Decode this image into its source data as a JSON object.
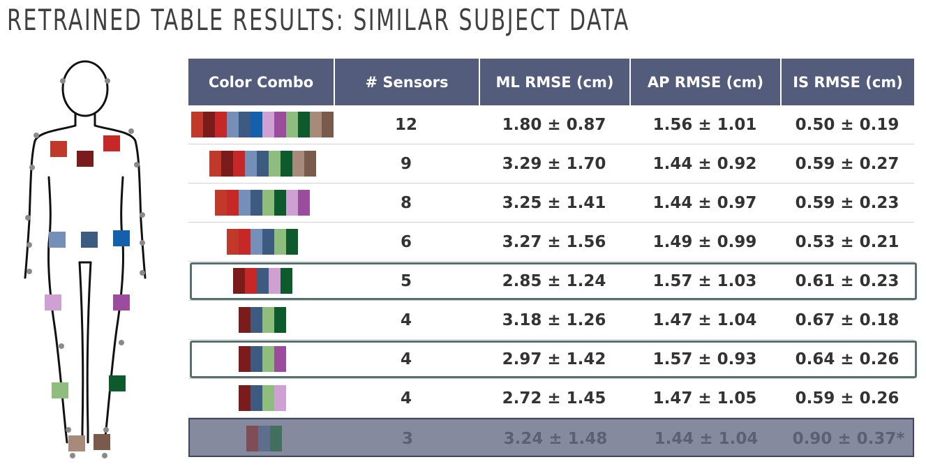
{
  "title": "RETRAINED TABLE RESULTS: SIMILAR SUBJECT DATA",
  "colors": {
    "header_bg": "#545c7c",
    "highlight_border": "#567070",
    "dimmed_row_bg": "#868a9e"
  },
  "figure": {
    "sensors": [
      {
        "name": "chest-right",
        "color": "#c0392b"
      },
      {
        "name": "chest-left",
        "color": "#c62828"
      },
      {
        "name": "sternum",
        "color": "#7b1c1c"
      },
      {
        "name": "hip-right",
        "color": "#7490b8"
      },
      {
        "name": "hip-center",
        "color": "#3d5a80"
      },
      {
        "name": "hip-left",
        "color": "#1560ad"
      },
      {
        "name": "thigh-right",
        "color": "#cfa0d4"
      },
      {
        "name": "thigh-left",
        "color": "#9c4c9c"
      },
      {
        "name": "shank-right",
        "color": "#8fbd7e"
      },
      {
        "name": "shank-left",
        "color": "#0d5a2c"
      },
      {
        "name": "foot-right",
        "color": "#a88a7a"
      },
      {
        "name": "foot-left",
        "color": "#7a5a4a"
      }
    ]
  },
  "table": {
    "headers": [
      "Color Combo",
      "# Sensors",
      "ML RMSE (cm)",
      "AP RMSE (cm)",
      "IS RMSE (cm)"
    ],
    "rows": [
      {
        "combo": [
          "#c0392b",
          "#7b1c1c",
          "#c62828",
          "#7490b8",
          "#3d5a80",
          "#1560ad",
          "#cfa0d4",
          "#9c4c9c",
          "#8fbd7e",
          "#0d5a2c",
          "#a88a7a",
          "#7a5a4a"
        ],
        "sensors": "12",
        "ml": "1.80 ± 0.87",
        "ap": "1.56 ± 1.01",
        "is": "0.50 ± 0.19",
        "highlight": false,
        "dim": false
      },
      {
        "combo": [
          "#c0392b",
          "#7b1c1c",
          "#c62828",
          "#7490b8",
          "#3d5a80",
          "#8fbd7e",
          "#0d5a2c",
          "#a88a7a",
          "#7a5a4a"
        ],
        "sensors": "9",
        "ml": "3.29 ± 1.70",
        "ap": "1.44 ± 0.92",
        "is": "0.59 ± 0.27",
        "highlight": false,
        "dim": false
      },
      {
        "combo": [
          "#c0392b",
          "#c62828",
          "#7490b8",
          "#3d5a80",
          "#8fbd7e",
          "#0d5a2c",
          "#cfa0d4",
          "#9c4c9c"
        ],
        "sensors": "8",
        "ml": "3.25 ± 1.41",
        "ap": "1.44 ± 0.97",
        "is": "0.59 ± 0.23",
        "highlight": false,
        "dim": false
      },
      {
        "combo": [
          "#c0392b",
          "#c62828",
          "#7490b8",
          "#3d5a80",
          "#8fbd7e",
          "#0d5a2c"
        ],
        "sensors": "6",
        "ml": "3.27 ± 1.56",
        "ap": "1.49 ± 0.99",
        "is": "0.53 ± 0.21",
        "highlight": false,
        "dim": false
      },
      {
        "combo": [
          "#7b1c1c",
          "#c62828",
          "#3d5a80",
          "#cfa0d4",
          "#0d5a2c"
        ],
        "sensors": "5",
        "ml": "2.85 ± 1.24",
        "ap": "1.57 ± 1.03",
        "is": "0.61 ± 0.23",
        "highlight": true,
        "dim": false
      },
      {
        "combo": [
          "#7b1c1c",
          "#3d5a80",
          "#8fbd7e",
          "#0d5a2c"
        ],
        "sensors": "4",
        "ml": "3.18 ± 1.26",
        "ap": "1.47 ± 1.04",
        "is": "0.67 ± 0.18",
        "highlight": false,
        "dim": false
      },
      {
        "combo": [
          "#7b1c1c",
          "#3d5a80",
          "#8fbd7e",
          "#9c4c9c"
        ],
        "sensors": "4",
        "ml": "2.97 ± 1.42",
        "ap": "1.57 ± 0.93",
        "is": "0.64 ± 0.26",
        "highlight": true,
        "dim": false
      },
      {
        "combo": [
          "#7b1c1c",
          "#3d5a80",
          "#8fbd7e",
          "#cfa0d4"
        ],
        "sensors": "4",
        "ml": "2.72 ± 1.45",
        "ap": "1.47 ± 1.05",
        "is": "0.59 ± 0.26",
        "highlight": false,
        "dim": false
      },
      {
        "combo": [
          "#7b1c1c",
          "#3d5a80",
          "#0d5a2c"
        ],
        "sensors": "3",
        "ml": "3.24 ± 1.48",
        "ap": "1.44 ± 1.04",
        "is": "0.90 ± 0.37*",
        "highlight": false,
        "dim": true
      }
    ]
  }
}
